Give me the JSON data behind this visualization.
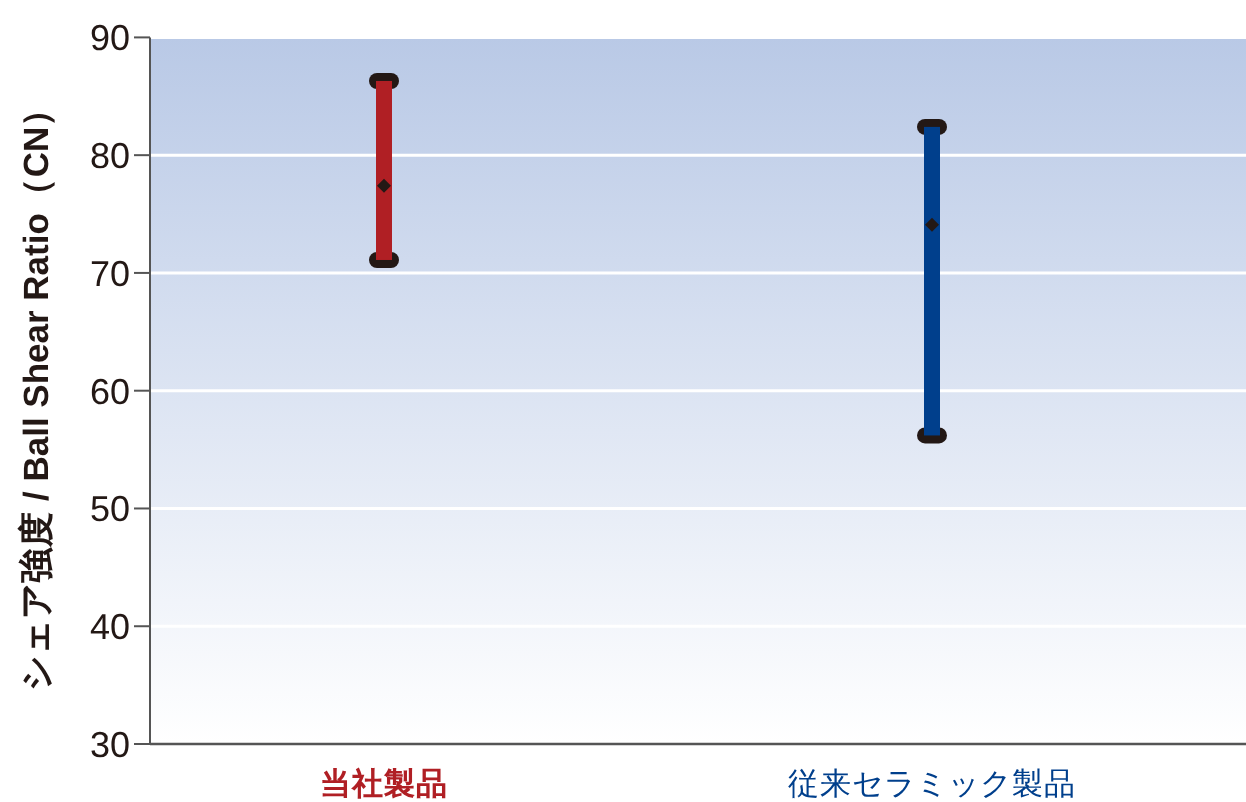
{
  "chart_data": {
    "type": "bar",
    "ylabel": "シェア強度 / Ball Shear Ratio（CN）",
    "categories": [
      "当社製品",
      "従来セラミック製品"
    ],
    "ylim": [
      30,
      90
    ],
    "yticks": [
      30,
      40,
      50,
      60,
      70,
      80,
      90
    ],
    "grid": "y",
    "series": [
      {
        "type": "scatter",
        "values": [
          86.3,
          82.4
        ],
        "color": "#231815",
        "marker": "square"
      },
      {
        "type": "scatter",
        "values": [
          71.1,
          56.2
        ],
        "color": "#231815",
        "marker": "square"
      },
      {
        "base": [
          71.1,
          56.2
        ],
        "values": [
          15.2,
          26.2
        ],
        "colors": [
          "#b01f24",
          "#003f8c"
        ]
      },
      {
        "type": "scatter",
        "values": [
          77.4,
          74.1
        ],
        "color": "#231815",
        "marker": "diamond"
      }
    ]
  }
}
